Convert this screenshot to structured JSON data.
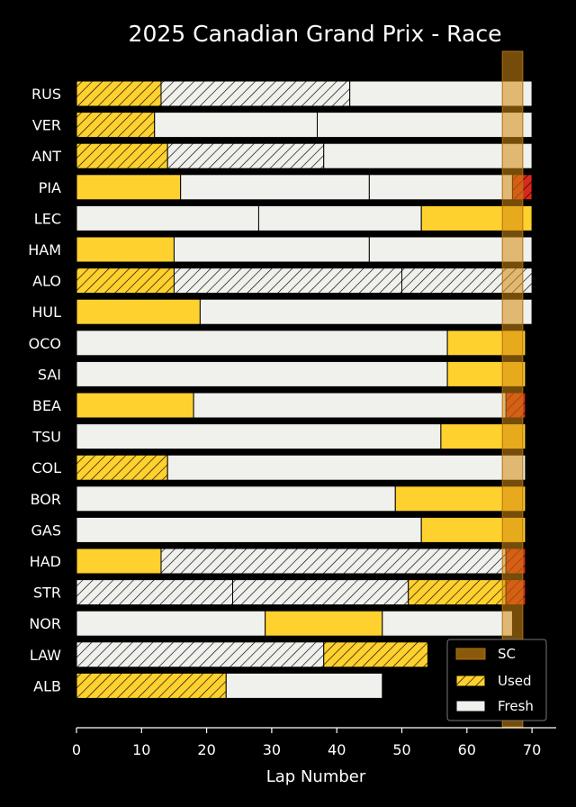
{
  "chart_data": {
    "type": "bar",
    "orientation": "horizontal-stacked",
    "title": "2025 Canadian Grand Prix - Race",
    "xlabel": "Lap Number",
    "ylabel": "",
    "xlim": [
      0,
      73
    ],
    "xticks": [
      0,
      10,
      20,
      30,
      40,
      50,
      60,
      70
    ],
    "grid": false,
    "legend_position": "bottom-right",
    "legend": [
      {
        "key": "sc",
        "label": "SC"
      },
      {
        "key": "used",
        "label": "Used"
      },
      {
        "key": "fresh",
        "label": "Fresh"
      }
    ],
    "safety_car": {
      "start": 66,
      "end": 69
    },
    "colors": {
      "MEDIUM": "#ffd12e",
      "HARD": "#f0f0ec",
      "SOFT": "#da291c",
      "sc": "#d68a10",
      "background": "#000000",
      "text": "#ffffff",
      "bar_edge": "#000000"
    },
    "drivers": [
      {
        "driver": "RUS",
        "stints": [
          {
            "start": 0,
            "end": 13,
            "compound": "MEDIUM",
            "fresh": false
          },
          {
            "start": 13,
            "end": 42,
            "compound": "HARD",
            "fresh": false
          },
          {
            "start": 42,
            "end": 70,
            "compound": "HARD",
            "fresh": true
          }
        ]
      },
      {
        "driver": "VER",
        "stints": [
          {
            "start": 0,
            "end": 12,
            "compound": "MEDIUM",
            "fresh": false
          },
          {
            "start": 12,
            "end": 37,
            "compound": "HARD",
            "fresh": true
          },
          {
            "start": 37,
            "end": 70,
            "compound": "HARD",
            "fresh": true
          }
        ]
      },
      {
        "driver": "ANT",
        "stints": [
          {
            "start": 0,
            "end": 14,
            "compound": "MEDIUM",
            "fresh": false
          },
          {
            "start": 14,
            "end": 38,
            "compound": "HARD",
            "fresh": false
          },
          {
            "start": 38,
            "end": 70,
            "compound": "HARD",
            "fresh": true
          }
        ]
      },
      {
        "driver": "PIA",
        "stints": [
          {
            "start": 0,
            "end": 16,
            "compound": "MEDIUM",
            "fresh": true
          },
          {
            "start": 16,
            "end": 45,
            "compound": "HARD",
            "fresh": true
          },
          {
            "start": 45,
            "end": 67,
            "compound": "HARD",
            "fresh": true
          },
          {
            "start": 67,
            "end": 70,
            "compound": "SOFT",
            "fresh": false
          }
        ]
      },
      {
        "driver": "LEC",
        "stints": [
          {
            "start": 0,
            "end": 28,
            "compound": "HARD",
            "fresh": true
          },
          {
            "start": 28,
            "end": 53,
            "compound": "HARD",
            "fresh": true
          },
          {
            "start": 53,
            "end": 70,
            "compound": "MEDIUM",
            "fresh": true
          }
        ]
      },
      {
        "driver": "HAM",
        "stints": [
          {
            "start": 0,
            "end": 15,
            "compound": "MEDIUM",
            "fresh": true
          },
          {
            "start": 15,
            "end": 45,
            "compound": "HARD",
            "fresh": true
          },
          {
            "start": 45,
            "end": 70,
            "compound": "HARD",
            "fresh": true
          }
        ]
      },
      {
        "driver": "ALO",
        "stints": [
          {
            "start": 0,
            "end": 15,
            "compound": "MEDIUM",
            "fresh": false
          },
          {
            "start": 15,
            "end": 50,
            "compound": "HARD",
            "fresh": false
          },
          {
            "start": 50,
            "end": 70,
            "compound": "HARD",
            "fresh": false
          }
        ]
      },
      {
        "driver": "HUL",
        "stints": [
          {
            "start": 0,
            "end": 19,
            "compound": "MEDIUM",
            "fresh": true
          },
          {
            "start": 19,
            "end": 70,
            "compound": "HARD",
            "fresh": true
          }
        ]
      },
      {
        "driver": "OCO",
        "stints": [
          {
            "start": 0,
            "end": 57,
            "compound": "HARD",
            "fresh": true
          },
          {
            "start": 57,
            "end": 69,
            "compound": "MEDIUM",
            "fresh": true
          }
        ]
      },
      {
        "driver": "SAI",
        "stints": [
          {
            "start": 0,
            "end": 57,
            "compound": "HARD",
            "fresh": true
          },
          {
            "start": 57,
            "end": 69,
            "compound": "MEDIUM",
            "fresh": true
          }
        ]
      },
      {
        "driver": "BEA",
        "stints": [
          {
            "start": 0,
            "end": 18,
            "compound": "MEDIUM",
            "fresh": true
          },
          {
            "start": 18,
            "end": 66,
            "compound": "HARD",
            "fresh": true
          },
          {
            "start": 66,
            "end": 69,
            "compound": "SOFT",
            "fresh": false
          }
        ]
      },
      {
        "driver": "TSU",
        "stints": [
          {
            "start": 0,
            "end": 56,
            "compound": "HARD",
            "fresh": true
          },
          {
            "start": 56,
            "end": 69,
            "compound": "MEDIUM",
            "fresh": true
          }
        ]
      },
      {
        "driver": "COL",
        "stints": [
          {
            "start": 0,
            "end": 14,
            "compound": "MEDIUM",
            "fresh": false
          },
          {
            "start": 14,
            "end": 69,
            "compound": "HARD",
            "fresh": true
          }
        ]
      },
      {
        "driver": "BOR",
        "stints": [
          {
            "start": 0,
            "end": 49,
            "compound": "HARD",
            "fresh": true
          },
          {
            "start": 49,
            "end": 69,
            "compound": "MEDIUM",
            "fresh": true
          }
        ]
      },
      {
        "driver": "GAS",
        "stints": [
          {
            "start": 0,
            "end": 53,
            "compound": "HARD",
            "fresh": true
          },
          {
            "start": 53,
            "end": 69,
            "compound": "MEDIUM",
            "fresh": true
          }
        ]
      },
      {
        "driver": "HAD",
        "stints": [
          {
            "start": 0,
            "end": 13,
            "compound": "MEDIUM",
            "fresh": true
          },
          {
            "start": 13,
            "end": 66,
            "compound": "HARD",
            "fresh": false
          },
          {
            "start": 66,
            "end": 69,
            "compound": "SOFT",
            "fresh": false
          }
        ]
      },
      {
        "driver": "STR",
        "stints": [
          {
            "start": 0,
            "end": 24,
            "compound": "HARD",
            "fresh": false
          },
          {
            "start": 24,
            "end": 51,
            "compound": "HARD",
            "fresh": false
          },
          {
            "start": 51,
            "end": 66,
            "compound": "MEDIUM",
            "fresh": false
          },
          {
            "start": 66,
            "end": 69,
            "compound": "SOFT",
            "fresh": false
          }
        ]
      },
      {
        "driver": "NOR",
        "stints": [
          {
            "start": 0,
            "end": 29,
            "compound": "HARD",
            "fresh": true
          },
          {
            "start": 29,
            "end": 47,
            "compound": "MEDIUM",
            "fresh": true
          },
          {
            "start": 47,
            "end": 67,
            "compound": "HARD",
            "fresh": true
          }
        ]
      },
      {
        "driver": "LAW",
        "stints": [
          {
            "start": 0,
            "end": 38,
            "compound": "HARD",
            "fresh": false
          },
          {
            "start": 38,
            "end": 54,
            "compound": "MEDIUM",
            "fresh": false
          }
        ]
      },
      {
        "driver": "ALB",
        "stints": [
          {
            "start": 0,
            "end": 23,
            "compound": "MEDIUM",
            "fresh": false
          },
          {
            "start": 23,
            "end": 47,
            "compound": "HARD",
            "fresh": true
          }
        ]
      }
    ]
  }
}
